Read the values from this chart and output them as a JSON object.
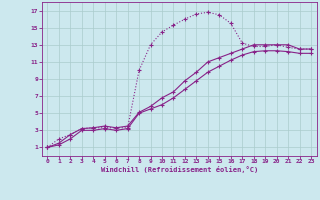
{
  "bg_color": "#cce8ee",
  "line_color": "#882288",
  "grid_color": "#aacccc",
  "xlabel": "Windchill (Refroidissement éolien,°C)",
  "xlim": [
    -0.5,
    23.5
  ],
  "ylim": [
    0,
    18
  ],
  "xticks": [
    0,
    1,
    2,
    3,
    4,
    5,
    6,
    7,
    8,
    9,
    10,
    11,
    12,
    13,
    14,
    15,
    16,
    17,
    18,
    19,
    20,
    21,
    22,
    23
  ],
  "yticks": [
    1,
    3,
    5,
    7,
    9,
    11,
    13,
    15,
    17
  ],
  "curve1_x": [
    0,
    1,
    2,
    3,
    4,
    5,
    6,
    7,
    8,
    9,
    10,
    11,
    12,
    13,
    14,
    15,
    16,
    17,
    18,
    19,
    20,
    21,
    22,
    23
  ],
  "curve1_y": [
    1,
    2,
    2.5,
    3.2,
    3.3,
    3.3,
    3.3,
    3.3,
    10.0,
    13.0,
    14.5,
    15.3,
    16.0,
    16.6,
    16.8,
    16.5,
    15.5,
    13.2,
    12.8,
    12.8,
    13.0,
    12.7,
    12.5,
    12.5
  ],
  "curve2_x": [
    0,
    1,
    2,
    3,
    4,
    5,
    6,
    7,
    8,
    9,
    10,
    11,
    12,
    13,
    14,
    15,
    16,
    17,
    18,
    19,
    20,
    21,
    22,
    23
  ],
  "curve2_y": [
    1,
    1.5,
    2.5,
    3.2,
    3.3,
    3.5,
    3.3,
    3.5,
    5.1,
    5.8,
    6.8,
    7.5,
    8.8,
    9.8,
    11.0,
    11.5,
    12.0,
    12.5,
    13.0,
    13.0,
    13.0,
    13.0,
    12.5,
    12.5
  ],
  "curve3_x": [
    0,
    1,
    2,
    3,
    4,
    5,
    6,
    7,
    8,
    9,
    10,
    11,
    12,
    13,
    14,
    15,
    16,
    17,
    18,
    19,
    20,
    21,
    22,
    23
  ],
  "curve3_y": [
    1,
    1.3,
    2.0,
    3.0,
    3.0,
    3.2,
    3.0,
    3.2,
    5.0,
    5.5,
    6.0,
    6.8,
    7.8,
    8.8,
    9.8,
    10.5,
    11.2,
    11.8,
    12.2,
    12.3,
    12.3,
    12.2,
    12.0,
    12.0
  ]
}
